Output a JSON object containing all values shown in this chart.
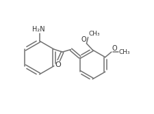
{
  "bg_color": "#ffffff",
  "line_color": "#707070",
  "text_color": "#303030",
  "line_width": 1.1,
  "font_size": 7.0,
  "fig_width": 2.26,
  "fig_height": 1.67,
  "dpi": 100,
  "xlim": [
    -0.05,
    1.05
  ],
  "ylim": [
    0.05,
    0.97
  ]
}
